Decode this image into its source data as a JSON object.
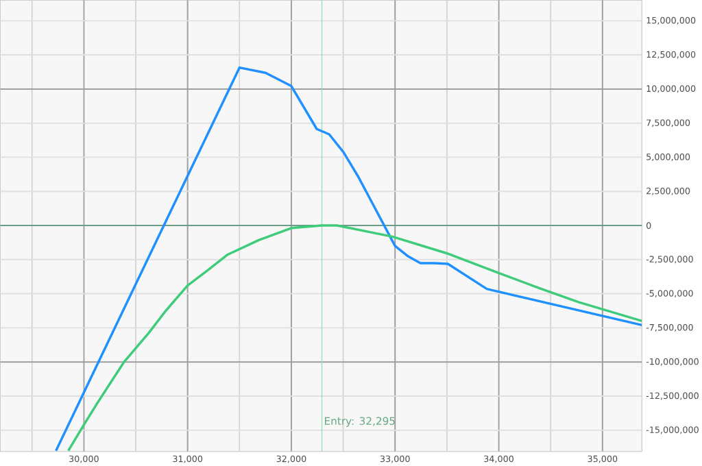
{
  "chart_data": {
    "type": "line",
    "series": [
      {
        "color": "#1e90ff",
        "x": [
          29731,
          31500,
          31751,
          32000,
          32245,
          32365,
          32502,
          32645,
          33000,
          33120,
          33245,
          33377,
          33509,
          33885,
          35380
        ],
        "values": [
          -16500000,
          11570000,
          11190000,
          10220000,
          7070000,
          6680000,
          5380000,
          3580000,
          -1500000,
          -2230000,
          -2760000,
          -2760000,
          -2810000,
          -4650000,
          -7300000
        ]
      },
      {
        "color": "#3ecc7a",
        "x": [
          29850,
          30000,
          30131,
          30389,
          30628,
          30789,
          30998,
          31183,
          31387,
          31686,
          32000,
          32293,
          32440,
          32976,
          33496,
          34004,
          34375,
          34770,
          35380
        ],
        "values": [
          -16500000,
          -14600000,
          -13000000,
          -9980000,
          -7850000,
          -6250000,
          -4410000,
          -3340000,
          -2130000,
          -1070000,
          -190000,
          0,
          0,
          -820000,
          -2030000,
          -3490000,
          -4550000,
          -5620000,
          -7000000
        ]
      }
    ],
    "xlim": [
      29193,
      35380
    ],
    "ylim": [
      -16560000,
      16510000
    ],
    "xticks": [
      {
        "value": 29500,
        "label": null
      },
      {
        "value": 30000,
        "label": "30,000"
      },
      {
        "value": 30500,
        "label": null
      },
      {
        "value": 31000,
        "label": "31,000"
      },
      {
        "value": 31500,
        "label": null
      },
      {
        "value": 32000,
        "label": "32,000"
      },
      {
        "value": 32500,
        "label": null
      },
      {
        "value": 33000,
        "label": "33,000"
      },
      {
        "value": 33500,
        "label": null
      },
      {
        "value": 34000,
        "label": "34,000"
      },
      {
        "value": 34500,
        "label": null
      },
      {
        "value": 35000,
        "label": "35,000"
      }
    ],
    "yticks": [
      {
        "value": -15000000,
        "label": "-15,000,000"
      },
      {
        "value": -12500000,
        "label": "-12,500,000"
      },
      {
        "value": -10000000,
        "label": "-10,000,000"
      },
      {
        "value": -7500000,
        "label": "-7,500,000"
      },
      {
        "value": -5000000,
        "label": "-5,000,000"
      },
      {
        "value": -2500000,
        "label": "-2,500,000"
      },
      {
        "value": 0,
        "label": "0"
      },
      {
        "value": 2500000,
        "label": "2,500,000"
      },
      {
        "value": 5000000,
        "label": "5,000,000"
      },
      {
        "value": 7500000,
        "label": "7,500,000"
      },
      {
        "value": 10000000,
        "label": "10,000,000"
      },
      {
        "value": 12500000,
        "label": "12,500,000"
      },
      {
        "value": 15000000,
        "label": "15,000,000"
      }
    ],
    "grid": true,
    "ref_lines": [
      {
        "axis": "x",
        "value": 32295,
        "label": "Entry: 32,295",
        "color": "#8be0af"
      },
      {
        "axis": "y",
        "value": 0,
        "color": "#5a9e80"
      }
    ],
    "marker": "none",
    "line_style": "solid"
  }
}
